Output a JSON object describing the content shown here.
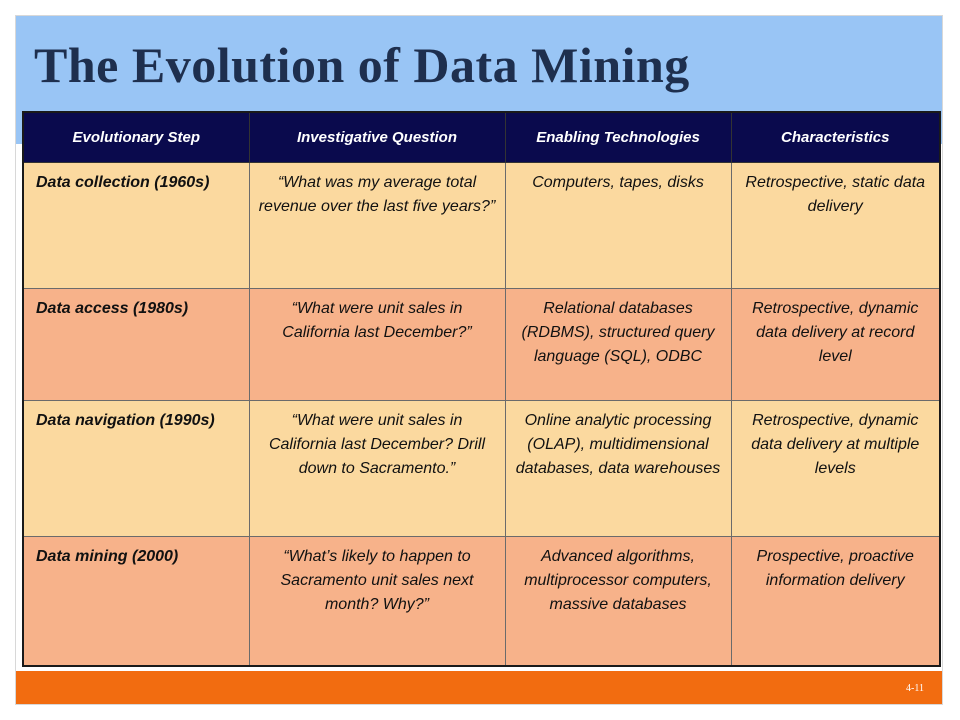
{
  "slide": {
    "title": "The Evolution of Data Mining",
    "page_number": "4-11",
    "colors": {
      "title_band": "#99c5f5",
      "header_row": "#0a0a4d",
      "row_light": "#fbd99f",
      "row_dark": "#f7b28a",
      "footer_band": "#f26c10",
      "title_text": "#1e2f4e"
    }
  },
  "table": {
    "headers": [
      "Evolutionary Step",
      "Investigative Question",
      "Enabling Technologies",
      "Characteristics"
    ],
    "rows": [
      {
        "step": "Data collection (1960s)",
        "question": "“What was my average total revenue over the last five years?”",
        "technologies": "Computers, tapes, disks",
        "characteristics": "Retrospective, static data delivery"
      },
      {
        "step": "Data access (1980s)",
        "question": "“What were unit sales in California last December?”",
        "technologies": "Relational databases (RDBMS), structured query language (SQL), ODBC",
        "characteristics": "Retrospective, dynamic data delivery at record level"
      },
      {
        "step": "Data navigation (1990s)",
        "question": "“What were unit sales in California last December? Drill down to Sacramento.”",
        "technologies": "Online analytic processing (OLAP), multidimensional databases, data warehouses",
        "characteristics": "Retrospective, dynamic data delivery at multiple levels"
      },
      {
        "step": "Data mining (2000)",
        "question": "“What’s likely to happen to Sacramento unit sales next month? Why?”",
        "technologies": "Advanced algorithms, multiprocessor computers, massive databases",
        "characteristics": "Prospective, proactive information delivery"
      }
    ]
  }
}
